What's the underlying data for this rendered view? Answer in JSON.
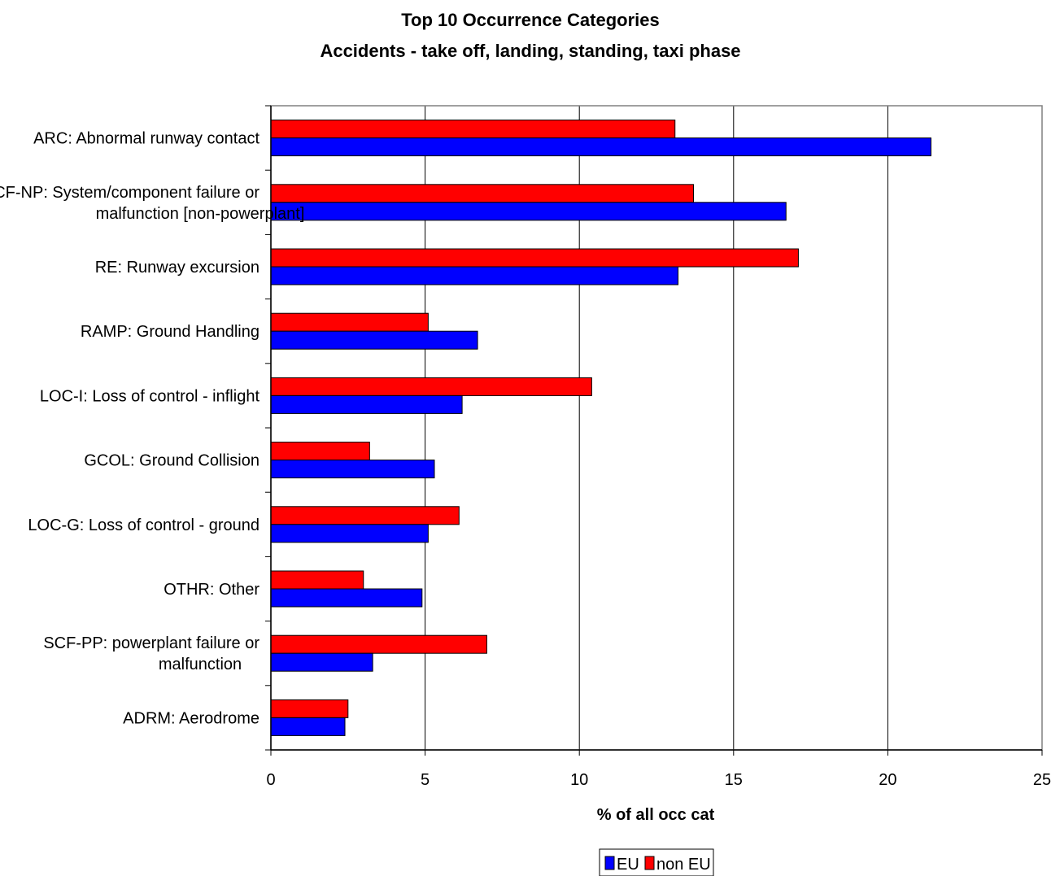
{
  "chart_data": {
    "type": "bar",
    "orientation": "horizontal",
    "title": "Top 10 Occurrence Categories",
    "subtitle": "Accidents - take off, landing, standing, taxi phase",
    "xlabel": "% of all occ cat",
    "ylabel": "",
    "xlim": [
      0,
      25
    ],
    "xticks": [
      "0",
      "5",
      "10",
      "15",
      "20",
      "25"
    ],
    "grid": true,
    "legend_position": "bottom",
    "categories": [
      [
        "ARC: Abnormal runway contact"
      ],
      [
        "SCF-NP: System/component failure or",
        "malfunction [non-powerplant]"
      ],
      [
        "RE: Runway excursion"
      ],
      [
        "RAMP: Ground Handling"
      ],
      [
        "LOC-I: Loss of control - inflight"
      ],
      [
        "GCOL: Ground Collision"
      ],
      [
        "LOC-G: Loss of control - ground"
      ],
      [
        "OTHR: Other"
      ],
      [
        "SCF-PP: powerplant failure or",
        "malfunction"
      ],
      [
        "ADRM: Aerodrome"
      ]
    ],
    "series": [
      {
        "name": "non EU",
        "color": "#ff0000",
        "values": [
          13.1,
          13.7,
          17.1,
          5.1,
          10.4,
          3.2,
          6.1,
          3.0,
          7.0,
          2.5
        ]
      },
      {
        "name": "EU",
        "color": "#0000ff",
        "values": [
          21.4,
          16.7,
          13.2,
          6.7,
          6.2,
          5.3,
          5.1,
          4.9,
          3.3,
          2.4
        ]
      }
    ],
    "legend": [
      "EU",
      "non EU"
    ]
  }
}
